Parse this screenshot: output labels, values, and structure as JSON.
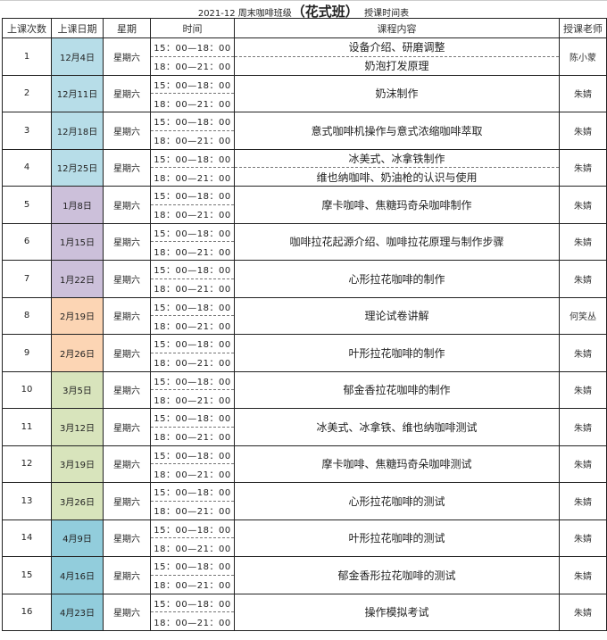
{
  "title": {
    "prefix": "2021-12 周末咖啡班级",
    "highlight": "（花式班）",
    "suffix": "授课时间表"
  },
  "headers": [
    "上课次数",
    "上课日期",
    "星期",
    "时间",
    "课程内容",
    "授课老师"
  ],
  "time_slots": [
    "15：00—18：00",
    "18：00—21：00"
  ],
  "colors": {
    "blue": "#b7dde8",
    "purple": "#ccc0da",
    "peach": "#fcd5b4",
    "green": "#d8e4bc",
    "teal": "#92cddc"
  },
  "rows": [
    {
      "no": "1",
      "date": "12月4日",
      "weekday": "星期六",
      "content": [
        "设备介绍、研磨调整",
        "奶泡打发原理"
      ],
      "teacher": "陈小蒙",
      "color": "blue"
    },
    {
      "no": "2",
      "date": "12月11日",
      "weekday": "星期六",
      "content": [
        "奶沫制作"
      ],
      "teacher": "朱婧",
      "color": "blue"
    },
    {
      "no": "3",
      "date": "12月18日",
      "weekday": "星期六",
      "content": [
        "意式咖啡机操作与意式浓缩咖啡萃取"
      ],
      "teacher": "朱婧",
      "color": "blue"
    },
    {
      "no": "4",
      "date": "12月25日",
      "weekday": "星期六",
      "content": [
        "冰美式、冰拿铁制作",
        "维也纳咖啡、奶油枪的认识与使用"
      ],
      "teacher": "朱婧",
      "color": "blue"
    },
    {
      "no": "5",
      "date": "1月8日",
      "weekday": "星期六",
      "content": [
        "摩卡咖啡、焦糖玛奇朵咖啡制作"
      ],
      "teacher": "朱婧",
      "color": "purple"
    },
    {
      "no": "6",
      "date": "1月15日",
      "weekday": "星期六",
      "content": [
        "咖啡拉花起源介绍、咖啡拉花原理与制作步骤"
      ],
      "teacher": "朱婧",
      "color": "purple"
    },
    {
      "no": "7",
      "date": "1月22日",
      "weekday": "星期六",
      "content": [
        "心形拉花咖啡的制作"
      ],
      "teacher": "朱婧",
      "color": "purple"
    },
    {
      "no": "8",
      "date": "2月19日",
      "weekday": "星期六",
      "content": [
        "理论试卷讲解"
      ],
      "teacher": "何笑丛",
      "color": "peach"
    },
    {
      "no": "9",
      "date": "2月26日",
      "weekday": "星期六",
      "content": [
        "叶形拉花咖啡的制作"
      ],
      "teacher": "朱婧",
      "color": "peach"
    },
    {
      "no": "10",
      "date": "3月5日",
      "weekday": "星期六",
      "content": [
        "郁金香拉花咖啡的制作"
      ],
      "teacher": "朱婧",
      "color": "green"
    },
    {
      "no": "11",
      "date": "3月12日",
      "weekday": "星期六",
      "content": [
        "冰美式、冰拿铁、维也纳咖啡测试"
      ],
      "teacher": "朱婧",
      "color": "green"
    },
    {
      "no": "12",
      "date": "3月19日",
      "weekday": "星期六",
      "content": [
        "摩卡咖啡、焦糖玛奇朵咖啡测试"
      ],
      "teacher": "朱婧",
      "color": "green"
    },
    {
      "no": "13",
      "date": "3月26日",
      "weekday": "星期六",
      "content": [
        "心形拉花咖啡的测试"
      ],
      "teacher": "朱婧",
      "color": "green"
    },
    {
      "no": "14",
      "date": "4月9日",
      "weekday": "星期六",
      "content": [
        "叶形拉花咖啡的测试"
      ],
      "teacher": "朱婧",
      "color": "teal"
    },
    {
      "no": "15",
      "date": "4月16日",
      "weekday": "星期六",
      "content": [
        "郁金香形拉花咖啡的测试"
      ],
      "teacher": "朱婧",
      "color": "teal"
    },
    {
      "no": "16",
      "date": "4月23日",
      "weekday": "星期六",
      "content": [
        "操作模拟考试"
      ],
      "teacher": "朱婧",
      "color": "teal"
    }
  ]
}
